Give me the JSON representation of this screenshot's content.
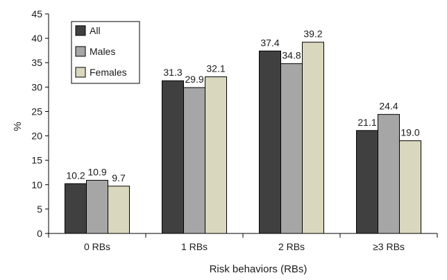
{
  "chart_data": {
    "type": "bar",
    "title": "",
    "xlabel": "Risk behaviors (RBs)",
    "ylabel": "%",
    "ylim": [
      0,
      45
    ],
    "yticks": [
      "0",
      "5",
      "10",
      "15",
      "20",
      "25",
      "30",
      "35",
      "40",
      "45"
    ],
    "categories": [
      "0 RBs",
      "1 RBs",
      "2 RBs",
      "≥3 RBs"
    ],
    "series": [
      {
        "name": "All",
        "color": "#404040",
        "values": [
          10.2,
          31.3,
          37.4,
          21.1
        ],
        "labels": [
          "10.2",
          "31.3",
          "37.4",
          "21.1"
        ]
      },
      {
        "name": "Males",
        "color": "#a6a6a6",
        "values": [
          10.9,
          29.9,
          34.8,
          24.4
        ],
        "labels": [
          "10.9",
          "29.9",
          "34.8",
          "24.4"
        ]
      },
      {
        "name": "Females",
        "color": "#d9d7bd",
        "values": [
          9.7,
          32.1,
          39.2,
          19.0
        ],
        "labels": [
          "9.7",
          "32.1",
          "39.2",
          "19.0"
        ]
      }
    ],
    "legend": "top-left",
    "grid": false
  }
}
